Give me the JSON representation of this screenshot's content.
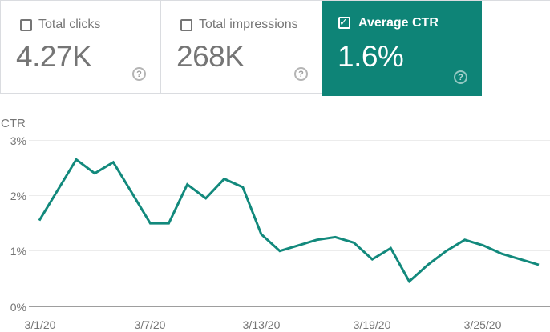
{
  "colors": {
    "accent_teal": "#0e8477",
    "line_teal": "#12897c",
    "card_border": "#dadce0",
    "text_gray": "#757575",
    "grid_gray": "#ececec",
    "axis_gray": "#9e9e9e"
  },
  "cards": [
    {
      "label": "Total clicks",
      "value": "4.27K",
      "checked": false,
      "help_glyph": "?"
    },
    {
      "label": "Total impressions",
      "value": "268K",
      "checked": false,
      "help_glyph": "?"
    },
    {
      "label": "Average CTR",
      "value": "1.6%",
      "checked": true,
      "help_glyph": "?"
    }
  ],
  "check_glyph": "✓",
  "chart_data": {
    "type": "line",
    "title": "CTR",
    "ylabel": "CTR",
    "xlabel": "",
    "legend_position": "none",
    "grid": true,
    "ylim": [
      0,
      3
    ],
    "yticks": [
      "0%",
      "1%",
      "2%",
      "3%"
    ],
    "xticks": [
      "3/1/20",
      "3/7/20",
      "3/13/20",
      "3/19/20",
      "3/25/20"
    ],
    "x": [
      "3/1/20",
      "3/2/20",
      "3/3/20",
      "3/4/20",
      "3/5/20",
      "3/6/20",
      "3/7/20",
      "3/8/20",
      "3/9/20",
      "3/10/20",
      "3/11/20",
      "3/12/20",
      "3/13/20",
      "3/14/20",
      "3/15/20",
      "3/16/20",
      "3/17/20",
      "3/18/20",
      "3/19/20",
      "3/20/20",
      "3/21/20",
      "3/22/20",
      "3/23/20",
      "3/24/20",
      "3/25/20",
      "3/26/20",
      "3/27/20",
      "3/28/20"
    ],
    "series": [
      {
        "name": "Average CTR",
        "unit": "%",
        "values": [
          1.55,
          2.1,
          2.65,
          2.4,
          2.6,
          2.05,
          1.5,
          1.5,
          2.2,
          1.95,
          2.3,
          2.15,
          1.3,
          1.0,
          1.1,
          1.2,
          1.25,
          1.15,
          0.85,
          1.05,
          0.45,
          0.75,
          1.0,
          1.2,
          1.1,
          0.95,
          0.85,
          0.75
        ]
      }
    ]
  }
}
